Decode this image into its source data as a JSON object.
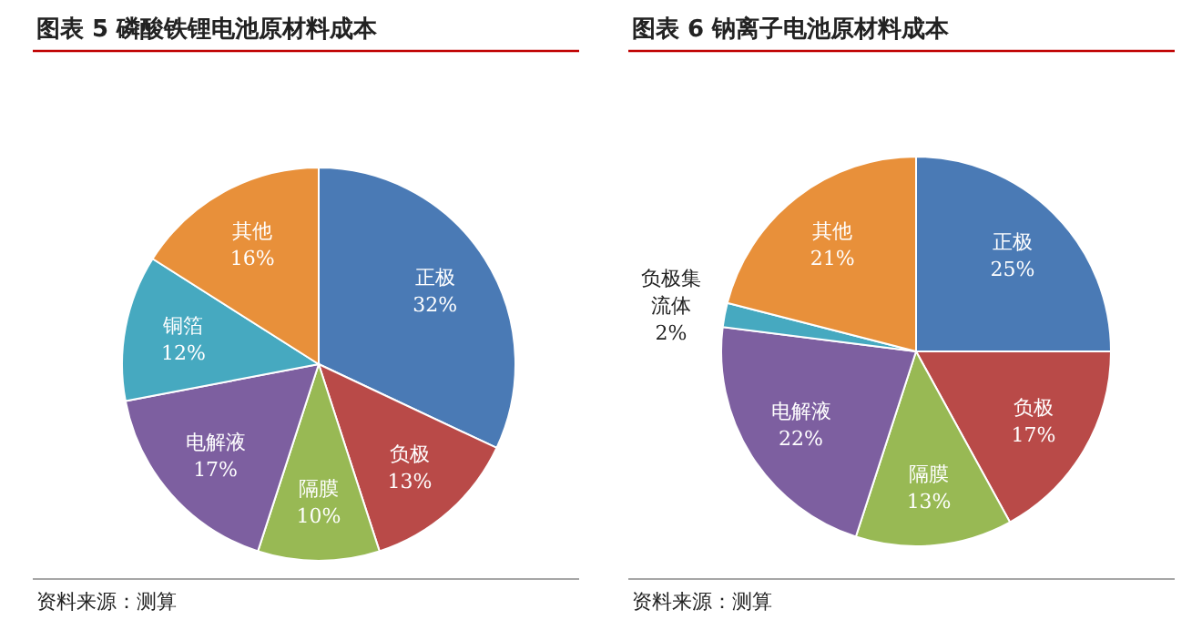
{
  "chart_data": [
    {
      "type": "pie",
      "title": "图表 5  磷酸铁锂电池原材料成本",
      "categories": [
        "正极",
        "负极",
        "隔膜",
        "电解液",
        "铜箔",
        "其他"
      ],
      "values": [
        32,
        13,
        10,
        17,
        12,
        16
      ],
      "value_labels": [
        "32%",
        "13%",
        "10%",
        "17%",
        "12%",
        "16%"
      ],
      "colors": [
        "#4a7ab5",
        "#b94a48",
        "#98b954",
        "#7d5fa0",
        "#46a9c0",
        "#e8903a"
      ],
      "annotations": [
        "资料来源：测算"
      ]
    },
    {
      "type": "pie",
      "title": "图表 6  钠离子电池原材料成本",
      "categories": [
        "正极",
        "负极",
        "隔膜",
        "电解液",
        "负极集流体",
        "其他"
      ],
      "values": [
        25,
        17,
        13,
        22,
        2,
        21
      ],
      "value_labels": [
        "25%",
        "17%",
        "13%",
        "22%",
        "2%",
        "21%"
      ],
      "colors": [
        "#4a7ab5",
        "#b94a48",
        "#98b954",
        "#7d5fa0",
        "#46a9c0",
        "#e8903a"
      ],
      "annotations": [
        "资料来源：测算"
      ]
    }
  ]
}
